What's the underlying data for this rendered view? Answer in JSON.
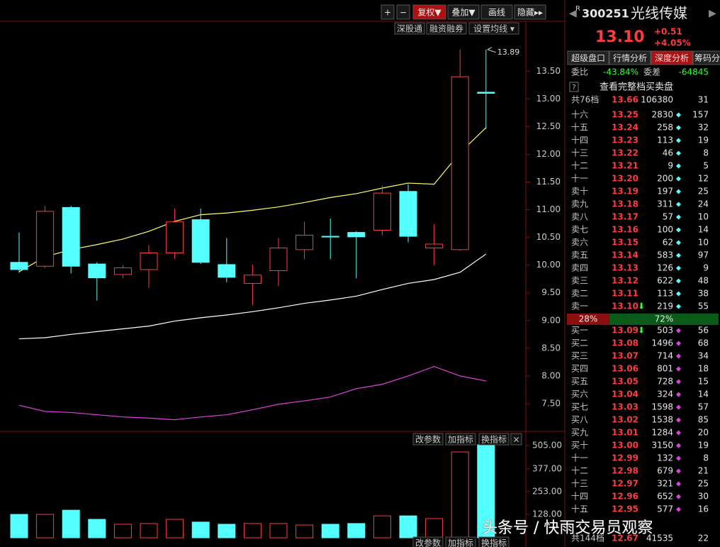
{
  "toolbar": {
    "buttons": [
      "+",
      "−",
      "复权▼",
      "叠加▼",
      "画线",
      "隐藏▸▸"
    ],
    "links": [
      "深股通",
      "融资融券",
      "设置均线 ▾"
    ]
  },
  "kline": {
    "ylim": [
      7.0,
      14.4
    ],
    "yticks": [
      {
        "value": 13.5,
        "label": "13.50"
      },
      {
        "value": 13,
        "label": "13.00"
      },
      {
        "value": 12.5,
        "label": "12.50"
      },
      {
        "value": 12,
        "label": "12.00"
      },
      {
        "value": 11.5,
        "label": "11.50"
      },
      {
        "value": 11,
        "label": "11.00"
      },
      {
        "value": 10.5,
        "label": "10.50"
      },
      {
        "value": 10,
        "label": "10.00"
      },
      {
        "value": 9.5,
        "label": "9.50"
      },
      {
        "value": 9,
        "label": "9.00"
      },
      {
        "value": 8.5,
        "label": "8.50"
      },
      {
        "value": 8,
        "label": "8.00"
      },
      {
        "value": 7.5,
        "label": "7.50"
      }
    ],
    "up_color": "#ff3c3c",
    "down_color": "#54ffff",
    "candles": [
      {
        "open": 10.05,
        "high": 10.59,
        "low": 9.86,
        "close": 9.92
      },
      {
        "open": 9.98,
        "high": 11.07,
        "low": 9.95,
        "close": 10.97
      },
      {
        "open": 11.04,
        "high": 11.07,
        "low": 9.85,
        "close": 9.98
      },
      {
        "open": 10.02,
        "high": 10.05,
        "low": 9.36,
        "close": 9.77
      },
      {
        "open": 9.83,
        "high": 10.0,
        "low": 9.77,
        "close": 9.95
      },
      {
        "open": 9.92,
        "high": 10.36,
        "low": 9.59,
        "close": 10.22
      },
      {
        "open": 10.22,
        "high": 11.02,
        "low": 10.11,
        "close": 10.78
      },
      {
        "open": 10.82,
        "high": 11.02,
        "low": 10.02,
        "close": 10.05
      },
      {
        "open": 10.01,
        "high": 10.49,
        "low": 9.69,
        "close": 9.78
      },
      {
        "open": 9.67,
        "high": 10.01,
        "low": 9.28,
        "close": 9.82
      },
      {
        "open": 9.9,
        "high": 10.49,
        "low": 9.62,
        "close": 10.31
      },
      {
        "open": 10.28,
        "high": 10.78,
        "low": 10.11,
        "close": 10.54
      },
      {
        "open": 10.52,
        "high": 10.84,
        "low": 10.11,
        "close": 10.51
      },
      {
        "open": 10.59,
        "high": 10.61,
        "low": 9.76,
        "close": 10.51
      },
      {
        "open": 10.63,
        "high": 11.43,
        "low": 10.54,
        "close": 11.3
      },
      {
        "open": 11.33,
        "high": 11.46,
        "low": 10.41,
        "close": 10.52
      },
      {
        "open": 10.31,
        "high": 10.74,
        "low": 10.0,
        "close": 10.38
      },
      {
        "open": 10.28,
        "high": 13.89,
        "low": 10.26,
        "close": 13.4
      },
      {
        "open": 13.12,
        "high": 13.89,
        "low": 12.46,
        "close": 13.1
      }
    ],
    "ma": [
      {
        "color": "#ffff66",
        "values": [
          9.88,
          10.15,
          10.28,
          10.37,
          10.47,
          10.61,
          10.79,
          10.91,
          10.94,
          10.99,
          11.05,
          11.13,
          11.22,
          11.29,
          11.39,
          11.48,
          11.46,
          12.03,
          12.48
        ]
      },
      {
        "color": "#ffffff",
        "values": [
          8.67,
          8.69,
          8.75,
          8.8,
          8.85,
          8.9,
          8.99,
          9.05,
          9.1,
          9.16,
          9.23,
          9.31,
          9.37,
          9.44,
          9.56,
          9.67,
          9.74,
          9.87,
          10.2
        ]
      },
      {
        "color": "#e040e0",
        "values": [
          7.47,
          7.36,
          7.34,
          7.3,
          7.26,
          7.24,
          7.21,
          7.26,
          7.3,
          7.39,
          7.49,
          7.55,
          7.62,
          7.77,
          7.85,
          8.0,
          8.17,
          8.0,
          7.91
        ]
      }
    ],
    "high_label": 13.89
  },
  "volume": {
    "ylim": [
      0,
      536
    ],
    "yticks": [
      {
        "value": 505,
        "label": "505.00"
      },
      {
        "value": 377,
        "label": "377.00"
      },
      {
        "value": 253,
        "label": "253.00"
      },
      {
        "value": 128,
        "label": "128.00"
      }
    ],
    "values": [
      128,
      128,
      151,
      101,
      74,
      78,
      101,
      86,
      74,
      78,
      78,
      70,
      74,
      78,
      120,
      120,
      105,
      470,
      509
    ],
    "buttons": [
      "改参数",
      "加指标",
      "换指标",
      "×"
    ]
  },
  "bottom_buttons": [
    "改参数",
    "加指标",
    "换指标"
  ],
  "quote": {
    "flag": "R",
    "code": "300251",
    "name": "光线传媒",
    "price": "13.10",
    "change": "+0.51",
    "change_pct": "+4.05%"
  },
  "tabs": [
    "超级盘口",
    "行情分析",
    "深度分析",
    "筹码分"
  ],
  "commission": {
    "ratio_label": "委比",
    "ratio": "-43.84%",
    "diff_label": "委差",
    "diff": "-64845"
  },
  "full_book": {
    "help": "?",
    "link": "查看完整档买卖盘"
  },
  "ask_total": [
    "共76档",
    "13.66",
    "106380",
    "31"
  ],
  "asks": [
    [
      "十六",
      "13.25",
      "2830",
      "157"
    ],
    [
      "十五",
      "13.24",
      "258",
      "32"
    ],
    [
      "十四",
      "13.23",
      "113",
      "19"
    ],
    [
      "十三",
      "13.22",
      "46",
      "8"
    ],
    [
      "十二",
      "13.21",
      "9",
      "5"
    ],
    [
      "十一",
      "13.20",
      "200",
      "12"
    ],
    [
      "卖十",
      "13.19",
      "197",
      "25"
    ],
    [
      "卖九",
      "13.18",
      "311",
      "24"
    ],
    [
      "卖八",
      "13.17",
      "57",
      "10"
    ],
    [
      "卖七",
      "13.16",
      "100",
      "14"
    ],
    [
      "卖六",
      "13.15",
      "62",
      "10"
    ],
    [
      "卖五",
      "13.14",
      "583",
      "97"
    ],
    [
      "卖四",
      "13.13",
      "126",
      "9"
    ],
    [
      "卖三",
      "13.12",
      "622",
      "48"
    ],
    [
      "卖二",
      "13.11",
      "113",
      "38"
    ],
    [
      "卖一",
      "13.10",
      "219",
      "55",
      "⬇"
    ]
  ],
  "ratio_bar": {
    "sell": {
      "value": 28,
      "label": "28%"
    },
    "buy": {
      "value": 72,
      "label": "72%"
    }
  },
  "bids": [
    [
      "买一",
      "13.09",
      "503",
      "56",
      "⬇"
    ],
    [
      "买二",
      "13.08",
      "1496",
      "68"
    ],
    [
      "买三",
      "13.07",
      "714",
      "34"
    ],
    [
      "买四",
      "13.06",
      "801",
      "18"
    ],
    [
      "买五",
      "13.05",
      "728",
      "15"
    ],
    [
      "买六",
      "13.04",
      "324",
      "14"
    ],
    [
      "买七",
      "13.03",
      "1598",
      "57"
    ],
    [
      "买八",
      "13.02",
      "1538",
      "85"
    ],
    [
      "买九",
      "13.01",
      "1284",
      "20"
    ],
    [
      "买十",
      "13.00",
      "3150",
      "19"
    ],
    [
      "十一",
      "12.99",
      "132",
      "8"
    ],
    [
      "十二",
      "12.98",
      "679",
      "21"
    ],
    [
      "十三",
      "12.97",
      "321",
      "25"
    ],
    [
      "十四",
      "12.96",
      "652",
      "30"
    ],
    [
      "十五",
      "12.95",
      "577",
      "16"
    ]
  ],
  "bid_total": [
    "共144档",
    "12.67",
    "41535",
    "22"
  ],
  "watermark": "头条号 / 快雨交易员观察"
}
